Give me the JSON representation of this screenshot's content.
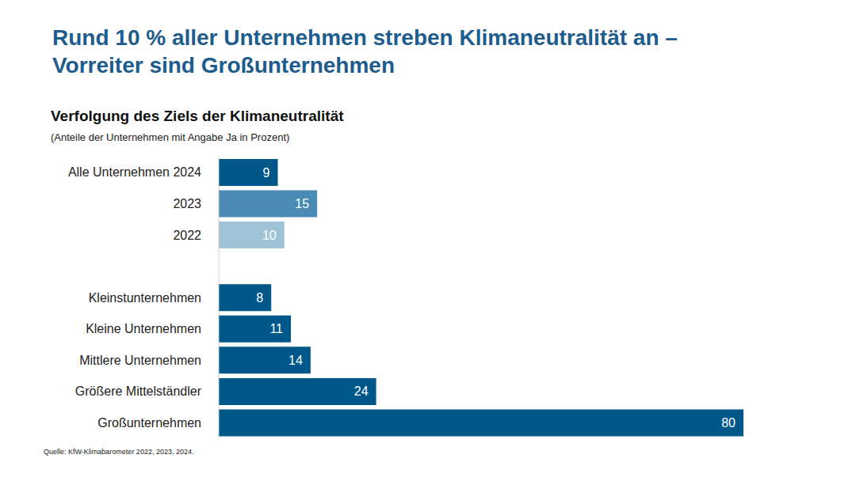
{
  "chart_data": {
    "type": "bar",
    "orientation": "horizontal",
    "title": "Rund 10 % aller Unternehmen streben Klimaneutralität an – Vorreiter sind Großunternehmen",
    "subtitle": "Verfolgung des Ziels der Klimaneutralität",
    "annotations": [
      "(Anteile der Unternehmen mit Angabe Ja in Prozent)",
      "Quelle: KfW-Klimabarometer 2022, 2023, 2024."
    ],
    "categories": [
      "Alle Unternehmen 2024",
      "2023",
      "2022",
      null,
      "Kleinstunternehmen",
      "Kleine Unternehmen",
      "Mittlere Unternehmen",
      "Größere Mittelständler",
      "Großunternehmen"
    ],
    "values": [
      9,
      15,
      10,
      null,
      8,
      11,
      14,
      24,
      80
    ],
    "colors": [
      "#00578a",
      "#4a8ab3",
      "#9fc3d7",
      null,
      "#00578a",
      "#00578a",
      "#00578a",
      "#00578a",
      "#00578a"
    ],
    "xlim": [
      0,
      80
    ],
    "data_labels": true,
    "tick_labels": "y",
    "grid": false
  }
}
